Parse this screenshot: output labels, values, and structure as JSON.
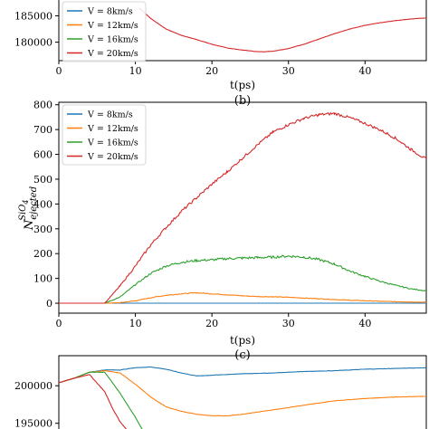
{
  "chart_data": [
    {
      "type": "line",
      "title": "",
      "xlabel": "t(ps)",
      "ylabel": "",
      "xlim": [
        0,
        48
      ],
      "ylim": [
        176500,
        188000
      ],
      "xticks": [
        0,
        10,
        20,
        30,
        40
      ],
      "yticks": [
        180000,
        185000
      ],
      "grid": false,
      "legend": "top-left",
      "series": [
        {
          "name": "V = 8km/s",
          "color": "#1f77b4",
          "x": [],
          "y": []
        },
        {
          "name": "V = 12km/s",
          "color": "#ff7f0e",
          "x": [],
          "y": []
        },
        {
          "name": "V = 16km/s",
          "color": "#2ca02c",
          "x": [],
          "y": []
        },
        {
          "name": "V = 20km/s",
          "color": "#d62728",
          "x": [
            10.5,
            12,
            14,
            16,
            18,
            20,
            22,
            24,
            26,
            27,
            28,
            30,
            32,
            34,
            36,
            38,
            40,
            42,
            44,
            46,
            48
          ],
          "y": [
            186500,
            184500,
            182500,
            181300,
            180500,
            179600,
            178900,
            178500,
            178200,
            178200,
            178300,
            178800,
            179600,
            180600,
            181600,
            182500,
            183200,
            183700,
            184100,
            184400,
            184600
          ]
        }
      ]
    },
    {
      "type": "line",
      "title": "",
      "xlabel": "t(ps)",
      "ylabel": "N",
      "ylabel_superscript": "SiO",
      "ylabel_superscript_sub": "4",
      "ylabel_subscript": "ejected",
      "xlim": [
        0,
        48
      ],
      "ylim": [
        -40,
        810
      ],
      "xticks": [
        0,
        10,
        20,
        30,
        40
      ],
      "yticks": [
        0,
        100,
        200,
        300,
        400,
        500,
        600,
        700,
        800
      ],
      "grid": false,
      "legend": "top-left",
      "series": [
        {
          "name": "V = 8km/s",
          "color": "#1f77b4",
          "x": [
            0,
            10,
            20,
            30,
            40,
            48
          ],
          "y": [
            0,
            0,
            0,
            0,
            0,
            0
          ]
        },
        {
          "name": "V = 12km/s",
          "color": "#ff7f0e",
          "x": [
            0,
            6,
            8,
            10,
            12,
            14,
            16,
            18,
            20,
            22,
            24,
            26,
            28,
            30,
            32,
            34,
            36,
            38,
            40,
            42,
            44,
            46,
            48
          ],
          "y": [
            0,
            0,
            2,
            10,
            22,
            32,
            38,
            42,
            38,
            34,
            30,
            27,
            26,
            24,
            21,
            18,
            15,
            12,
            10,
            8,
            6,
            5,
            4
          ]
        },
        {
          "name": "V = 16km/s",
          "color": "#2ca02c",
          "x": [
            0,
            6,
            8,
            10,
            12,
            14,
            16,
            18,
            20,
            22,
            24,
            26,
            28,
            30,
            32,
            34,
            36,
            38,
            40,
            42,
            44,
            46,
            48
          ],
          "y": [
            0,
            0,
            25,
            75,
            120,
            150,
            165,
            172,
            175,
            180,
            182,
            184,
            186,
            190,
            186,
            176,
            158,
            130,
            108,
            88,
            72,
            58,
            50
          ]
        },
        {
          "name": "V = 20km/s",
          "color": "#d62728",
          "x": [
            0,
            6,
            8,
            10,
            12,
            14,
            16,
            18,
            20,
            22,
            24,
            26,
            28,
            30,
            32,
            34,
            36,
            38,
            40,
            42,
            44,
            46,
            48
          ],
          "y": [
            0,
            0,
            70,
            150,
            235,
            305,
            370,
            425,
            480,
            530,
            585,
            640,
            690,
            720,
            745,
            760,
            765,
            748,
            725,
            698,
            665,
            620,
            580
          ]
        }
      ]
    },
    {
      "type": "line",
      "title": "",
      "xlabel": "",
      "ylabel": "",
      "xlim": [
        0,
        48
      ],
      "ylim": [
        194000,
        204000
      ],
      "xticks": [],
      "yticks": [
        195000,
        200000
      ],
      "grid": false,
      "legend": "none",
      "series": [
        {
          "name": "V = 8km/s",
          "color": "#1f77b4",
          "x": [
            0,
            2,
            4,
            6,
            8,
            10,
            12,
            14,
            16,
            18,
            20,
            24,
            28,
            32,
            36,
            40,
            44,
            48
          ],
          "y": [
            200400,
            201000,
            201800,
            202100,
            202100,
            202400,
            202500,
            202200,
            201700,
            201300,
            201400,
            201600,
            201700,
            201900,
            202000,
            202200,
            202300,
            202400
          ]
        },
        {
          "name": "V = 12km/s",
          "color": "#ff7f0e",
          "x": [
            0,
            2,
            4,
            6,
            8,
            10,
            12,
            14,
            16,
            18,
            20,
            22,
            24,
            28,
            32,
            36,
            40,
            44,
            48
          ],
          "y": [
            200400,
            201000,
            201800,
            202000,
            201700,
            200200,
            198500,
            197200,
            196600,
            196200,
            196000,
            196000,
            196200,
            196800,
            197400,
            198000,
            198300,
            198500,
            198600
          ]
        },
        {
          "name": "V = 16km/s",
          "color": "#2ca02c",
          "x": [
            0,
            2,
            4,
            6,
            8,
            10,
            11
          ],
          "y": [
            200400,
            201000,
            201800,
            201800,
            199000,
            195800,
            194000
          ]
        },
        {
          "name": "V = 20km/s",
          "color": "#d62728",
          "x": [
            0,
            2,
            4,
            6,
            7,
            8,
            9
          ],
          "y": [
            200400,
            201000,
            201500,
            199200,
            197000,
            195200,
            194000
          ]
        }
      ]
    }
  ],
  "labels": {
    "top_xlabel": "t(ps)",
    "panel_b": "(b)",
    "mid_xlabel": "t(ps)",
    "panel_c": "(c)"
  }
}
